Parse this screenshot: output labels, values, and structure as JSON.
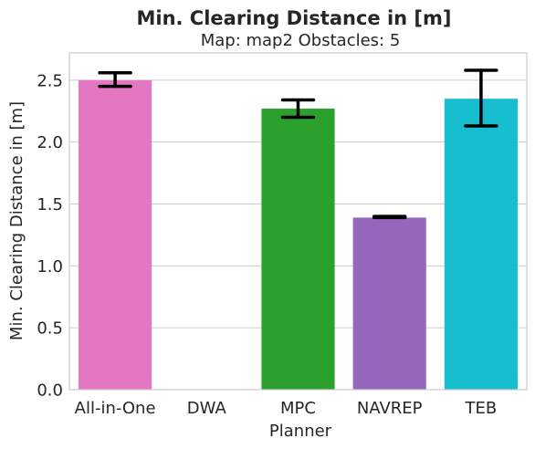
{
  "chart_data": {
    "type": "bar",
    "title": "Min. Clearing Distance in [m]",
    "subtitle": "Map: map2 Obstacles: 5",
    "xlabel": "Planner",
    "ylabel": "Min. Clearing Distance in [m]",
    "categories": [
      "All-in-One",
      "DWA",
      "MPC",
      "NAVREP",
      "TEB"
    ],
    "values": [
      2.5,
      null,
      2.27,
      1.39,
      2.35
    ],
    "error_low": [
      2.45,
      null,
      2.2,
      1.39,
      2.13
    ],
    "error_high": [
      2.56,
      null,
      2.34,
      1.4,
      2.58
    ],
    "colors": [
      "#e377c2",
      "#8c564b",
      "#2ca02c",
      "#9467bd",
      "#17becf"
    ],
    "ylim": [
      0,
      2.72
    ],
    "yticks": [
      "0.0",
      "0.5",
      "1.0",
      "1.5",
      "2.0",
      "2.5"
    ],
    "grid": "horizontal",
    "legend": "none"
  }
}
